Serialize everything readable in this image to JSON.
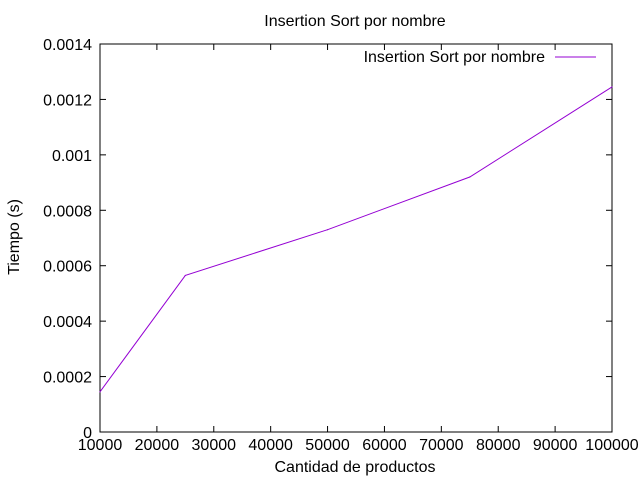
{
  "chart_data": {
    "type": "line",
    "title": "Insertion Sort por nombre",
    "xlabel": "Cantidad de productos",
    "ylabel": "Tiempo (s)",
    "xlim": [
      10000,
      100000
    ],
    "ylim": [
      0,
      0.0014
    ],
    "x_ticks": [
      10000,
      20000,
      30000,
      40000,
      50000,
      60000,
      70000,
      80000,
      90000,
      100000
    ],
    "y_ticks": [
      0,
      0.0002,
      0.0004,
      0.0006,
      0.0008,
      0.001,
      0.0012,
      0.0014
    ],
    "x_tick_labels": [
      "10000",
      "20000",
      "30000",
      "40000",
      "50000",
      "60000",
      "70000",
      "80000",
      "90000",
      "100000"
    ],
    "y_tick_labels": [
      "0",
      "0.0002",
      "0.0004",
      "0.0006",
      "0.0008",
      "0.001",
      "0.0012",
      "0.0014"
    ],
    "grid": false,
    "legend": "top-right",
    "series": [
      {
        "name": "Insertion Sort por nombre",
        "color": "#9400d3",
        "x": [
          10000,
          25000,
          50000,
          75000,
          100000
        ],
        "y": [
          0.000145,
          0.000565,
          0.00073,
          0.00092,
          0.001245
        ]
      }
    ]
  }
}
